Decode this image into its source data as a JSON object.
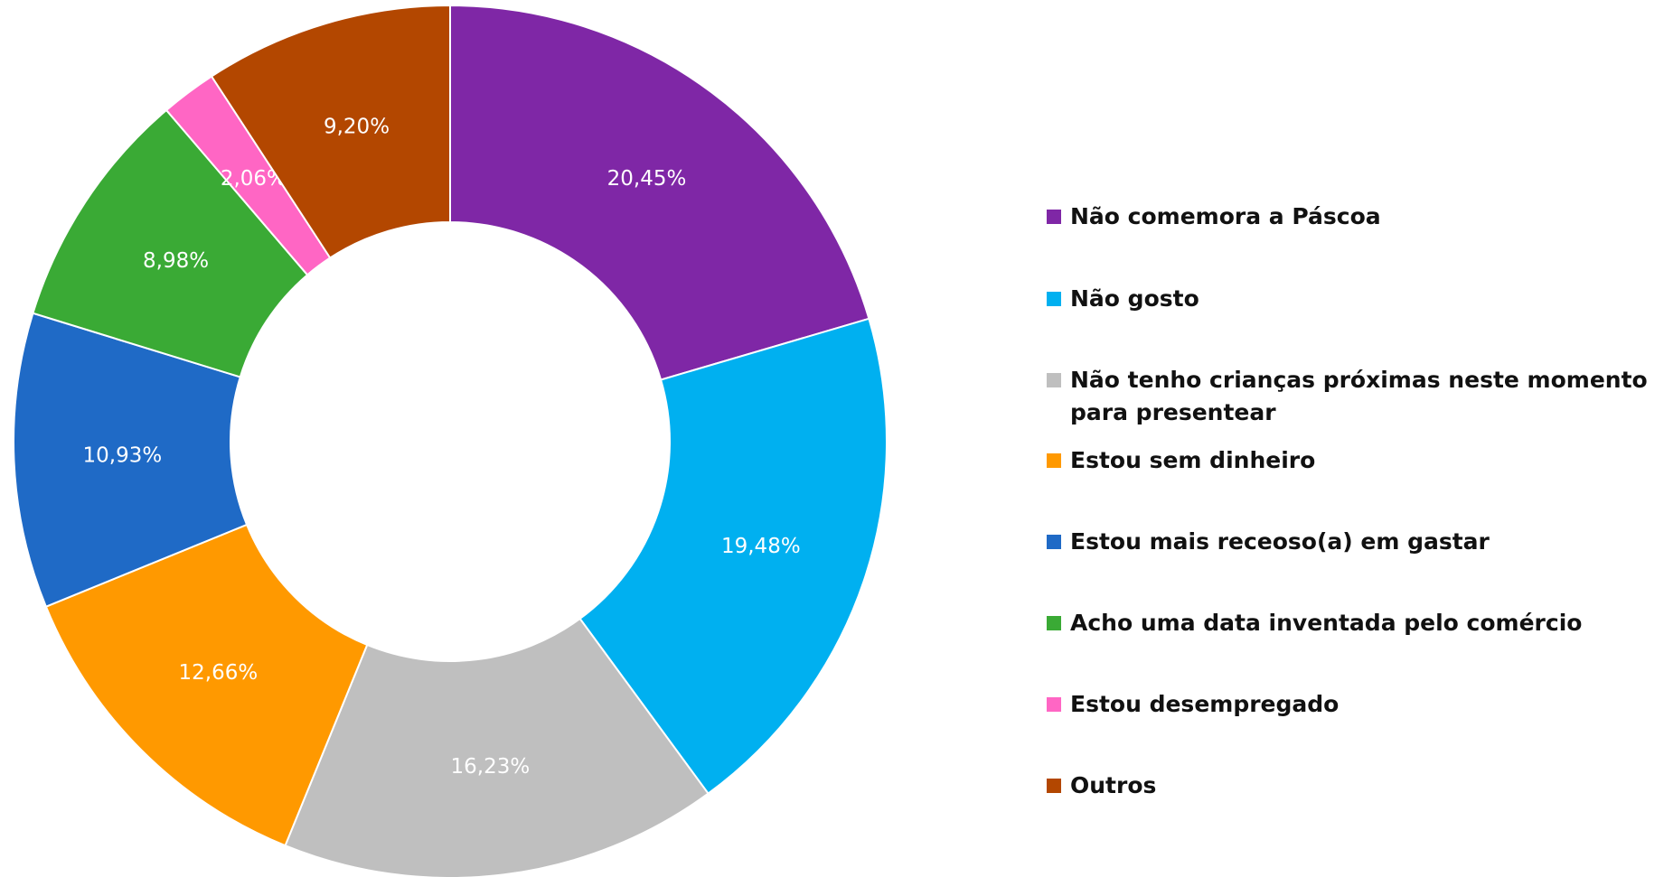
{
  "chart_data": {
    "type": "donut",
    "categories": [
      "Não comemora a Páscoa",
      "Não gosto",
      "Não tenho crianças próximas neste momento para presentear",
      "Estou sem dinheiro",
      "Estou mais receoso(a) em gastar",
      "Acho uma data inventada pelo comércio",
      "Estou desempregado",
      "Outros"
    ],
    "values": [
      20.45,
      19.48,
      16.23,
      12.66,
      10.93,
      8.98,
      2.06,
      9.2
    ],
    "value_labels": [
      "20,45%",
      "19,48%",
      "16,23%",
      "12,66%",
      "10,93%",
      "8,98%",
      "2,06%",
      "9,20%"
    ],
    "colors": [
      "#7f27a6",
      "#00b0f0",
      "#bfbfbf",
      "#ff9900",
      "#1f6ac6",
      "#3aaa35",
      "#ff66c4",
      "#b34700"
    ],
    "legend": "right"
  }
}
